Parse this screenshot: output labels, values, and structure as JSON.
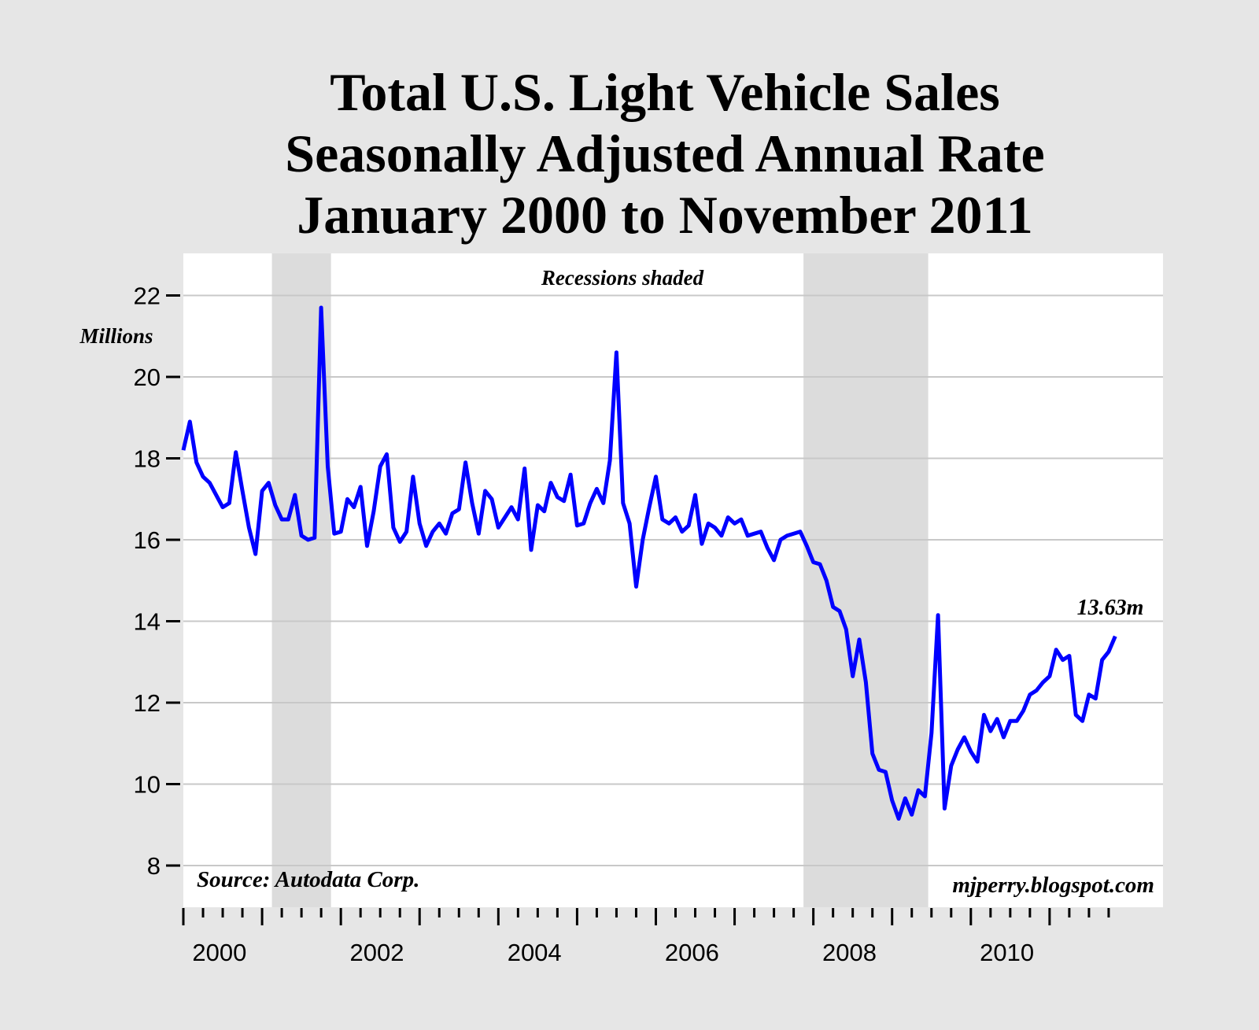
{
  "chart_data": {
    "type": "line",
    "title": [
      "Total U.S. Light Vehicle Sales",
      "Seasonally Adjusted Annual Rate",
      "January 2000 to November 2011"
    ],
    "ylabel": "Millions",
    "ylim": [
      7,
      23
    ],
    "yticks": [
      8,
      10,
      12,
      14,
      16,
      18,
      20,
      22
    ],
    "xticks": [
      "2000",
      "2002",
      "2004",
      "2006",
      "2008",
      "2010"
    ],
    "x_start": "2000-01",
    "x_end": "2011-11",
    "frequency": "monthly",
    "grid": "horizontal",
    "line_color": "#0000ff",
    "recession_color": "#dcdcdc",
    "recessions": [
      [
        "2001-03",
        "2001-11"
      ],
      [
        "2007-12",
        "2009-06"
      ]
    ],
    "annotations": {
      "recessions_note": "Recessions shaded",
      "source": "Source: Autodata Corp.",
      "site": "mjperry.blogspot.com",
      "last_value": "13.63m"
    },
    "values": [
      18.2,
      18.9,
      17.9,
      17.55,
      17.4,
      17.1,
      16.8,
      16.9,
      18.15,
      17.2,
      16.3,
      15.65,
      17.2,
      17.4,
      16.85,
      16.5,
      16.5,
      17.1,
      16.1,
      16.0,
      16.05,
      21.7,
      17.8,
      16.15,
      16.2,
      17.0,
      16.8,
      17.3,
      15.85,
      16.7,
      17.8,
      18.1,
      16.3,
      15.95,
      16.2,
      17.55,
      16.4,
      15.85,
      16.2,
      16.4,
      16.15,
      16.65,
      16.75,
      17.9,
      16.9,
      16.15,
      17.2,
      17.0,
      16.3,
      16.55,
      16.8,
      16.5,
      17.75,
      15.75,
      16.85,
      16.7,
      17.4,
      17.05,
      16.95,
      17.6,
      16.35,
      16.4,
      16.9,
      17.25,
      16.9,
      17.95,
      20.6,
      16.9,
      16.4,
      14.85,
      16.0,
      16.8,
      17.55,
      16.5,
      16.4,
      16.55,
      16.2,
      16.35,
      17.1,
      15.9,
      16.4,
      16.3,
      16.1,
      16.55,
      16.4,
      16.5,
      16.1,
      16.15,
      16.2,
      15.8,
      15.5,
      16.0,
      16.1,
      16.15,
      16.2,
      15.85,
      15.45,
      15.4,
      15.0,
      14.35,
      14.25,
      13.8,
      12.65,
      13.55,
      12.5,
      10.75,
      10.35,
      10.3,
      9.6,
      9.15,
      9.65,
      9.25,
      9.85,
      9.7,
      11.25,
      14.15,
      9.4,
      10.45,
      10.85,
      11.15,
      10.8,
      10.55,
      11.7,
      11.3,
      11.6,
      11.15,
      11.55,
      11.55,
      11.8,
      12.2,
      12.3,
      12.5,
      12.65,
      13.3,
      13.05,
      13.15,
      11.7,
      11.55,
      12.2,
      12.1,
      13.05,
      13.25,
      13.63
    ]
  }
}
